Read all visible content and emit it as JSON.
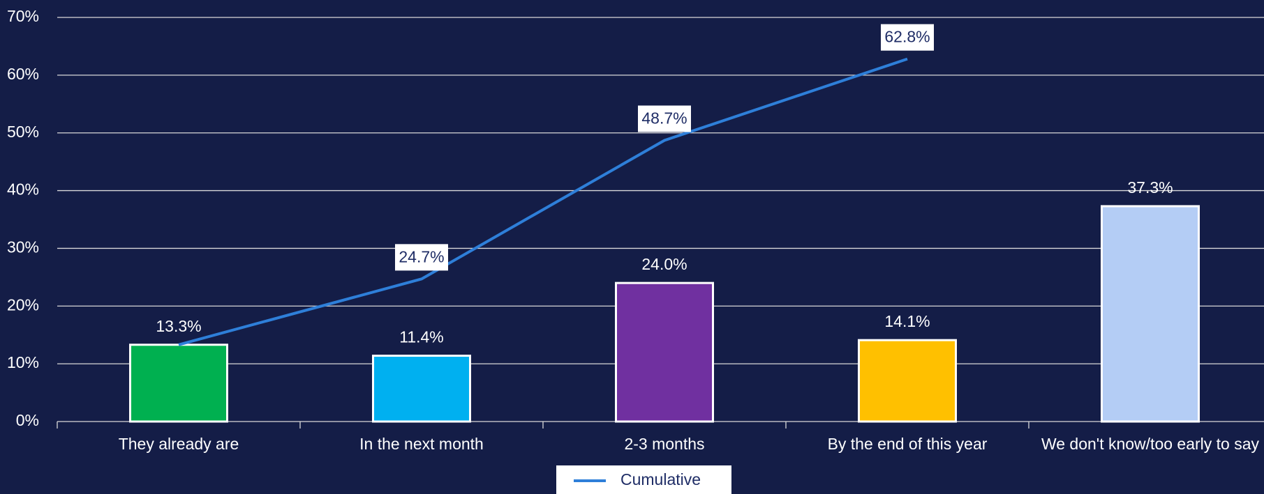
{
  "chart_data": {
    "type": "bar",
    "categories": [
      "They already are",
      "In the next month",
      "2-3 months",
      "By the end of this year",
      "We don't know/too early to say"
    ],
    "values": [
      13.3,
      11.4,
      24.0,
      14.1,
      37.3
    ],
    "value_labels": [
      "13.3%",
      "11.4%",
      "24.0%",
      "14.1%",
      "37.3%"
    ],
    "colors": [
      "#00b050",
      "#00b0f0",
      "#7030a0",
      "#ffc000",
      "#b4cdf5"
    ],
    "series": [
      {
        "name": "Cumulative",
        "type": "line",
        "color": "#2e7fd9",
        "values": [
          13.3,
          24.7,
          48.7,
          62.8,
          null
        ],
        "value_labels": [
          null,
          "24.7%",
          "48.7%",
          "62.8%",
          null
        ]
      }
    ],
    "ylim": [
      0,
      70
    ],
    "yticks": [
      {
        "value": 0,
        "label": "0%"
      },
      {
        "value": 10,
        "label": "10%"
      },
      {
        "value": 20,
        "label": "20%"
      },
      {
        "value": 30,
        "label": "30%"
      },
      {
        "value": 40,
        "label": "40%"
      },
      {
        "value": 50,
        "label": "50%"
      },
      {
        "value": 60,
        "label": "60%"
      },
      {
        "value": 70,
        "label": "70%"
      }
    ],
    "grid": true,
    "legend": "bottom"
  }
}
